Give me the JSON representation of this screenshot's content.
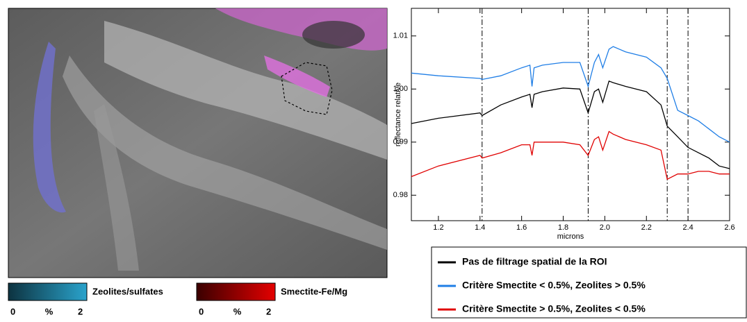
{
  "chart_data": {
    "type": "line",
    "ylabel": "reflectance relative",
    "xlabel": "microns",
    "x": [
      1.07,
      1.2,
      1.4,
      1.41,
      1.5,
      1.6,
      1.64,
      1.65,
      1.66,
      1.7,
      1.8,
      1.88,
      1.92,
      1.95,
      1.97,
      1.99,
      2.02,
      2.04,
      2.1,
      2.2,
      2.27,
      2.3,
      2.35,
      2.4,
      2.45,
      2.5,
      2.55,
      2.6
    ],
    "series": [
      {
        "name": "Pas de filtrage spatial de la ROI",
        "color": "#000000",
        "values": [
          0.9935,
          0.9945,
          0.9955,
          0.995,
          0.997,
          0.9985,
          0.999,
          0.9965,
          0.999,
          0.9995,
          1.0002,
          1.0,
          0.9955,
          0.9995,
          1.0,
          0.9975,
          1.0015,
          1.0012,
          1.0005,
          0.9995,
          0.997,
          0.993,
          0.991,
          0.989,
          0.988,
          0.987,
          0.9855,
          0.985
        ]
      },
      {
        "name": "Critère Smectite < 0.5%, Zeolites > 0.5%",
        "color": "#1f7ee6",
        "values": [
          1.003,
          1.0025,
          1.002,
          1.0018,
          1.0025,
          1.004,
          1.0045,
          1.0005,
          1.004,
          1.0045,
          1.005,
          1.005,
          1.0005,
          1.005,
          1.0065,
          1.004,
          1.0075,
          1.008,
          1.007,
          1.006,
          1.004,
          1.002,
          0.996,
          0.995,
          0.994,
          0.9925,
          0.991,
          0.99
        ]
      },
      {
        "name": "Critère Smectite > 0.5%, Zeolites < 0.5%",
        "color": "#e00000",
        "values": [
          0.9835,
          0.9855,
          0.9875,
          0.987,
          0.988,
          0.9895,
          0.9895,
          0.9875,
          0.99,
          0.99,
          0.99,
          0.9895,
          0.9875,
          0.9905,
          0.991,
          0.9885,
          0.992,
          0.9915,
          0.9905,
          0.9895,
          0.9885,
          0.983,
          0.984,
          0.984,
          0.9845,
          0.9845,
          0.984,
          0.984
        ]
      }
    ],
    "xlim": [
      1.07,
      2.6
    ],
    "ylim": [
      0.9752,
      1.0152
    ],
    "xticks": [
      1.2,
      1.4,
      1.6,
      1.8,
      {
        "value": 2,
        "label": "2.0"
      },
      2.2,
      2.4,
      2.6
    ],
    "yticks": [
      0.98,
      0.99,
      {
        "value": 1,
        "label": "1.00"
      },
      1.01
    ],
    "vlines": [
      1.41,
      1.92,
      2.3,
      2.4
    ]
  },
  "colorbars": [
    {
      "label": "Zeolites/sulfates",
      "ticks": [
        0,
        2
      ],
      "unit": "%",
      "colors": [
        "#0d3340",
        "#2aa3cc"
      ]
    },
    {
      "label": "Smectite-Fe/Mg",
      "ticks": [
        0,
        2
      ],
      "unit": "%",
      "colors": [
        "#3a0000",
        "#e40000"
      ]
    }
  ]
}
